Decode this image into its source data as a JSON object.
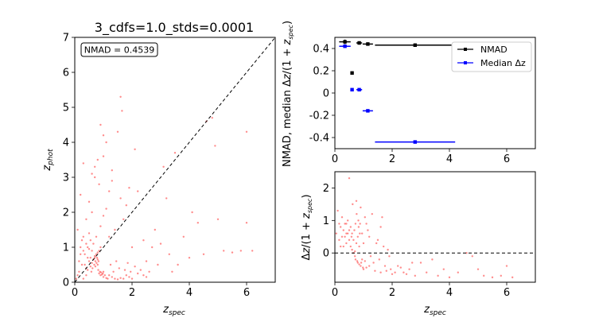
{
  "chart_data": [
    {
      "id": "main",
      "type": "scatter",
      "title": "3_cdfs=1.0_stds=0.0001",
      "xlabel": "z_spec",
      "ylabel": "z_phot",
      "xlim": [
        0,
        7
      ],
      "ylim": [
        0,
        7
      ],
      "xticks": [
        0,
        2,
        4,
        6
      ],
      "yticks": [
        0,
        1,
        2,
        3,
        4,
        5,
        6,
        7
      ],
      "annotation": "NMAD = 0.4539",
      "reference_line": "y = x (dashed)",
      "point_color": "#ff0000",
      "points": [
        [
          0.05,
          0.1
        ],
        [
          0.1,
          0.2
        ],
        [
          0.15,
          0.3
        ],
        [
          0.2,
          0.8
        ],
        [
          0.25,
          1.2
        ],
        [
          0.3,
          0.9
        ],
        [
          0.35,
          0.5
        ],
        [
          0.4,
          0.4
        ],
        [
          0.45,
          1.0
        ],
        [
          0.5,
          0.6
        ],
        [
          0.5,
          1.4
        ],
        [
          0.55,
          0.7
        ],
        [
          0.6,
          0.55
        ],
        [
          0.6,
          0.9
        ],
        [
          0.65,
          0.65
        ],
        [
          0.65,
          1.1
        ],
        [
          0.7,
          0.7
        ],
        [
          0.7,
          0.75
        ],
        [
          0.72,
          0.6
        ],
        [
          0.75,
          0.8
        ],
        [
          0.75,
          1.3
        ],
        [
          0.78,
          0.7
        ],
        [
          0.8,
          0.85
        ],
        [
          0.8,
          0.5
        ],
        [
          0.82,
          0.35
        ],
        [
          0.85,
          0.9
        ],
        [
          0.85,
          0.25
        ],
        [
          0.88,
          0.3
        ],
        [
          0.9,
          0.2
        ],
        [
          0.9,
          1.0
        ],
        [
          0.92,
          0.28
        ],
        [
          0.95,
          0.22
        ],
        [
          0.98,
          0.25
        ],
        [
          1.0,
          0.3
        ],
        [
          1.0,
          0.15
        ],
        [
          1.05,
          0.2
        ],
        [
          1.1,
          0.12
        ],
        [
          1.15,
          0.1
        ],
        [
          1.2,
          0.2
        ],
        [
          1.3,
          0.15
        ],
        [
          1.4,
          0.1
        ],
        [
          1.5,
          0.08
        ],
        [
          1.6,
          0.12
        ],
        [
          1.7,
          0.1
        ],
        [
          1.8,
          0.2
        ],
        [
          1.9,
          0.15
        ],
        [
          2.0,
          0.1
        ],
        [
          2.2,
          0.25
        ],
        [
          2.4,
          0.2
        ],
        [
          2.6,
          0.3
        ],
        [
          0.1,
          1.5
        ],
        [
          0.2,
          2.5
        ],
        [
          0.3,
          3.4
        ],
        [
          0.4,
          1.8
        ],
        [
          0.5,
          2.3
        ],
        [
          0.6,
          3.1
        ],
        [
          0.7,
          3.3
        ],
        [
          0.8,
          3.5
        ],
        [
          0.85,
          2.8
        ],
        [
          0.9,
          1.6
        ],
        [
          1.0,
          1.9
        ],
        [
          1.0,
          3.6
        ],
        [
          1.1,
          2.1
        ],
        [
          1.1,
          4.0
        ],
        [
          1.2,
          1.3
        ],
        [
          1.2,
          2.6
        ],
        [
          1.3,
          3.2
        ],
        [
          1.4,
          1.5
        ],
        [
          1.5,
          4.3
        ],
        [
          1.6,
          2.4
        ],
        [
          1.6,
          5.3
        ],
        [
          1.65,
          4.9
        ],
        [
          1.7,
          1.8
        ],
        [
          1.8,
          2.2
        ],
        [
          2.0,
          1.0
        ],
        [
          2.1,
          3.8
        ],
        [
          2.2,
          2.6
        ],
        [
          2.4,
          1.2
        ],
        [
          2.5,
          0.6
        ],
        [
          2.7,
          1.0
        ],
        [
          2.9,
          0.5
        ],
        [
          3.0,
          1.1
        ],
        [
          3.2,
          2.4
        ],
        [
          3.3,
          0.8
        ],
        [
          3.5,
          3.7
        ],
        [
          3.6,
          0.5
        ],
        [
          3.8,
          1.3
        ],
        [
          4.0,
          0.7
        ],
        [
          4.3,
          1.7
        ],
        [
          4.5,
          0.8
        ],
        [
          4.6,
          4.6
        ],
        [
          4.8,
          4.7
        ],
        [
          4.9,
          3.9
        ],
        [
          5.0,
          1.8
        ],
        [
          5.2,
          0.9
        ],
        [
          5.5,
          0.85
        ],
        [
          5.8,
          0.9
        ],
        [
          6.0,
          4.3
        ],
        [
          6.0,
          1.7
        ],
        [
          6.2,
          0.9
        ],
        [
          0.3,
          0.1
        ],
        [
          0.4,
          0.2
        ],
        [
          0.45,
          0.35
        ],
        [
          0.55,
          0.45
        ],
        [
          0.62,
          0.4
        ],
        [
          0.68,
          0.5
        ],
        [
          0.72,
          0.45
        ],
        [
          0.76,
          0.55
        ],
        [
          0.8,
          0.65
        ],
        [
          0.83,
          0.6
        ],
        [
          0.15,
          0.6
        ],
        [
          0.2,
          1.0
        ],
        [
          0.25,
          0.5
        ],
        [
          0.3,
          1.3
        ],
        [
          0.35,
          0.8
        ],
        [
          0.4,
          1.1
        ],
        [
          0.45,
          0.7
        ],
        [
          0.5,
          0.95
        ],
        [
          0.55,
          1.2
        ],
        [
          0.58,
          0.3
        ],
        [
          1.25,
          0.5
        ],
        [
          1.35,
          0.3
        ],
        [
          1.45,
          0.6
        ],
        [
          1.55,
          0.4
        ],
        [
          1.75,
          0.35
        ],
        [
          1.85,
          0.55
        ],
        [
          1.95,
          0.3
        ],
        [
          2.1,
          0.45
        ],
        [
          2.3,
          0.35
        ],
        [
          2.5,
          0.15
        ],
        [
          0.9,
          4.5
        ],
        [
          1.0,
          4.2
        ],
        [
          0.7,
          3.0
        ],
        [
          0.6,
          2.0
        ],
        [
          1.3,
          2.9
        ],
        [
          1.9,
          2.7
        ],
        [
          2.8,
          1.5
        ],
        [
          3.1,
          3.3
        ],
        [
          3.4,
          0.3
        ],
        [
          4.1,
          2.0
        ]
      ]
    },
    {
      "id": "nmad",
      "type": "line",
      "xlabel": "",
      "ylabel": "NMAD, median Δz/(1 + z_spec)",
      "xlim": [
        0,
        7
      ],
      "ylim": [
        -0.5,
        0.5
      ],
      "xticks": [
        0,
        2,
        4,
        6
      ],
      "yticks": [
        -0.4,
        -0.2,
        0.0,
        0.2,
        0.4
      ],
      "legend": "upper right",
      "series": [
        {
          "name": "NMAD",
          "color": "#000000",
          "x": [
            0.35,
            0.6,
            0.85,
            1.15,
            2.8
          ],
          "y": [
            0.46,
            0.18,
            0.45,
            0.44,
            0.43
          ],
          "xerr": [
            0.2,
            0.05,
            0.1,
            0.18,
            1.4
          ],
          "yerr": [
            0.02,
            0.015,
            0.015,
            0.015,
            0.015
          ]
        },
        {
          "name": "Median Δz",
          "color": "#0000ff",
          "x": [
            0.35,
            0.6,
            0.85,
            1.15,
            2.8
          ],
          "y": [
            0.42,
            0.03,
            0.03,
            -0.16,
            -0.44
          ],
          "xerr": [
            0.2,
            0.05,
            0.1,
            0.18,
            1.4
          ],
          "yerr": [
            0.01,
            0.01,
            0.01,
            0.01,
            0.01
          ]
        }
      ]
    },
    {
      "id": "residual",
      "type": "scatter",
      "xlabel": "z_spec",
      "ylabel": "Δz/(1 + z_spec)",
      "xlim": [
        0,
        7
      ],
      "ylim": [
        -0.9,
        2.5
      ],
      "xticks": [
        0,
        2,
        4,
        6
      ],
      "yticks": [
        0,
        1,
        2
      ],
      "reference_line": "y = 0 (dashed)",
      "point_color": "#ff0000",
      "points": [
        [
          0.05,
          0.6
        ],
        [
          0.1,
          1.3
        ],
        [
          0.15,
          0.9
        ],
        [
          0.2,
          0.8
        ],
        [
          0.25,
          1.1
        ],
        [
          0.3,
          0.7
        ],
        [
          0.35,
          0.5
        ],
        [
          0.4,
          0.3
        ],
        [
          0.45,
          0.6
        ],
        [
          0.5,
          0.4
        ],
        [
          0.5,
          2.3
        ],
        [
          0.55,
          0.2
        ],
        [
          0.6,
          0.1
        ],
        [
          0.6,
          0.6
        ],
        [
          0.65,
          0.0
        ],
        [
          0.65,
          0.4
        ],
        [
          0.7,
          0.05
        ],
        [
          0.7,
          -0.1
        ],
        [
          0.72,
          -0.2
        ],
        [
          0.75,
          0.3
        ],
        [
          0.75,
          1.6
        ],
        [
          0.78,
          -0.25
        ],
        [
          0.8,
          0.5
        ],
        [
          0.8,
          -0.3
        ],
        [
          0.82,
          1.0
        ],
        [
          0.85,
          0.2
        ],
        [
          0.85,
          -0.35
        ],
        [
          0.88,
          0.9
        ],
        [
          0.9,
          -0.4
        ],
        [
          0.9,
          1.4
        ],
        [
          0.92,
          -0.3
        ],
        [
          0.95,
          0.6
        ],
        [
          0.98,
          -0.45
        ],
        [
          1.0,
          0.3
        ],
        [
          1.0,
          -0.5
        ],
        [
          1.05,
          1.1
        ],
        [
          1.1,
          -0.45
        ],
        [
          1.15,
          0.7
        ],
        [
          1.2,
          -0.4
        ],
        [
          1.3,
          1.2
        ],
        [
          1.4,
          -0.55
        ],
        [
          1.5,
          0.4
        ],
        [
          1.6,
          -0.6
        ],
        [
          1.7,
          0.2
        ],
        [
          1.8,
          -0.55
        ],
        [
          1.9,
          -0.1
        ],
        [
          2.0,
          -0.65
        ],
        [
          2.2,
          -0.4
        ],
        [
          2.4,
          -0.6
        ],
        [
          2.6,
          -0.5
        ],
        [
          2.8,
          -0.7
        ],
        [
          3.0,
          -0.3
        ],
        [
          3.2,
          -0.6
        ],
        [
          3.4,
          -0.2
        ],
        [
          3.6,
          -0.7
        ],
        [
          3.8,
          -0.5
        ],
        [
          4.0,
          -0.75
        ],
        [
          4.3,
          -0.6
        ],
        [
          4.6,
          0.0
        ],
        [
          4.8,
          -0.1
        ],
        [
          5.0,
          -0.5
        ],
        [
          5.2,
          -0.7
        ],
        [
          5.5,
          -0.75
        ],
        [
          5.8,
          -0.7
        ],
        [
          6.0,
          -0.4
        ],
        [
          6.2,
          -0.75
        ],
        [
          1.6,
          0.8
        ],
        [
          1.65,
          1.1
        ],
        [
          1.2,
          0.5
        ],
        [
          1.1,
          0.9
        ],
        [
          0.3,
          0.2
        ],
        [
          0.4,
          0.9
        ],
        [
          0.45,
          1.0
        ],
        [
          0.55,
          0.8
        ],
        [
          0.62,
          1.5
        ],
        [
          0.68,
          0.7
        ],
        [
          0.72,
          0.9
        ],
        [
          0.76,
          1.2
        ],
        [
          0.83,
          0.8
        ],
        [
          0.87,
          0.6
        ],
        [
          1.25,
          -0.1
        ],
        [
          1.35,
          -0.3
        ],
        [
          1.45,
          0.3
        ],
        [
          1.55,
          -0.2
        ],
        [
          1.75,
          -0.4
        ],
        [
          1.85,
          0.1
        ],
        [
          1.95,
          -0.5
        ],
        [
          2.1,
          -0.6
        ],
        [
          2.3,
          -0.45
        ],
        [
          2.5,
          -0.65
        ],
        [
          0.15,
          0.4
        ],
        [
          0.2,
          0.2
        ],
        [
          0.25,
          0.5
        ],
        [
          0.35,
          0.9
        ],
        [
          0.4,
          0.6
        ],
        [
          0.5,
          0.7
        ],
        [
          0.58,
          0.5
        ],
        [
          0.95,
          -0.2
        ],
        [
          1.05,
          -0.25
        ],
        [
          2.7,
          -0.3
        ]
      ]
    }
  ]
}
